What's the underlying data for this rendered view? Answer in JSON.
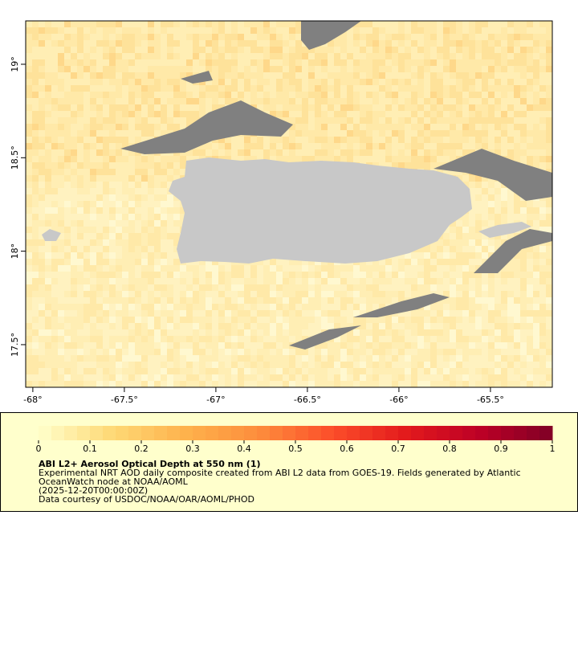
{
  "map": {
    "xlim": [
      -68.039,
      -65.162
    ],
    "ylim": [
      17.272,
      19.232
    ],
    "xticks": [
      {
        "value": -68,
        "label": "-68°"
      },
      {
        "value": -67.5,
        "label": "-67.5°"
      },
      {
        "value": -67,
        "label": "-67°"
      },
      {
        "value": -66.5,
        "label": "-66.5°"
      },
      {
        "value": -66,
        "label": "-66°"
      },
      {
        "value": -65.5,
        "label": "-65.5°"
      }
    ],
    "yticks": [
      {
        "value": 19,
        "label": "19°"
      },
      {
        "value": 18.5,
        "label": "18.5°"
      },
      {
        "value": 18,
        "label": "18°"
      },
      {
        "value": 17.5,
        "label": "17.5°"
      }
    ]
  },
  "colorbar": {
    "range": [
      0,
      1
    ],
    "ticks": [
      0,
      0.1,
      0.2,
      0.3,
      0.4,
      0.5,
      0.6,
      0.7,
      0.8,
      0.9,
      1
    ],
    "color_stops": [
      "#ffffcc",
      "#fed976",
      "#feb24c",
      "#fd8d3c",
      "#fc4e2a",
      "#e31a1c",
      "#bd0026",
      "#800026"
    ]
  },
  "legend": {
    "title": "ABI L2+ Aerosol Optical Depth at 550 nm (1)",
    "lines": [
      "Experimental NRT AOD daily composite created from ABI L2 data from GOES-19. Fields generated by Atlantic",
      "OceanWatch node at NOAA/AOML",
      "(2025-12-20T00:00:00Z)",
      "Data courtesy of USDOC/NOAA/OAR/AOML/PHOD"
    ]
  }
}
